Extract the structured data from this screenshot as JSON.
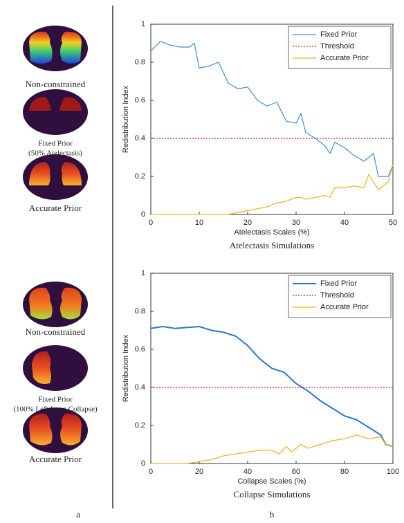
{
  "left_panel": {
    "captions": [
      "Non-constrained",
      "Fixed Prior",
      "(50% Atelectasis)",
      "Accurate Prior",
      "Non-constrained",
      "Fixed Prior",
      "(100% Left Lung Collapse)",
      "Accurate Prior"
    ]
  },
  "panel_labels": [
    "a",
    "b"
  ],
  "chart_data": [
    {
      "type": "line",
      "caption": "Atelectasis Simulations",
      "x_label": "Atelectasis Scales (%)",
      "y_label": "Redistribution Index",
      "xlim": [
        0,
        50
      ],
      "xticks": [
        0,
        10,
        20,
        30,
        40,
        50
      ],
      "ylim": [
        0,
        1
      ],
      "yticks": [
        0,
        0.2,
        0.4,
        0.6,
        0.8,
        1
      ],
      "legend": "upper right",
      "series": [
        {
          "name": "Fixed Prior",
          "color": "#3a8fd8",
          "dash": "solid",
          "x": [
            0,
            2,
            4,
            6,
            8,
            9,
            10,
            12,
            14,
            16,
            18,
            20,
            22,
            24,
            26,
            28,
            30,
            31,
            32,
            34,
            36,
            37,
            38,
            40,
            42,
            44,
            46,
            47,
            49,
            50
          ],
          "values": [
            0.86,
            0.91,
            0.89,
            0.88,
            0.88,
            0.9,
            0.77,
            0.78,
            0.8,
            0.69,
            0.66,
            0.67,
            0.6,
            0.57,
            0.59,
            0.49,
            0.48,
            0.53,
            0.43,
            0.4,
            0.36,
            0.32,
            0.38,
            0.35,
            0.31,
            0.28,
            0.32,
            0.2,
            0.2,
            0.26
          ]
        },
        {
          "name": "Threshold",
          "color": "#e02020",
          "dash": "dotted",
          "x": [
            0,
            50
          ],
          "values": [
            0.4,
            0.4
          ]
        },
        {
          "name": "Accurate Prior",
          "color": "#f0b020",
          "dash": "solid",
          "x": [
            0,
            2,
            4,
            6,
            8,
            9,
            10,
            12,
            14,
            16,
            18,
            20,
            22,
            24,
            26,
            28,
            30,
            31,
            32,
            34,
            36,
            37,
            38,
            40,
            42,
            44,
            45,
            47,
            49,
            50
          ],
          "values": [
            0,
            0,
            0,
            0,
            0,
            0,
            0,
            0,
            0,
            0,
            0.01,
            0.02,
            0.03,
            0.04,
            0.06,
            0.07,
            0.09,
            0.09,
            0.08,
            0.09,
            0.1,
            0.09,
            0.14,
            0.14,
            0.15,
            0.14,
            0.21,
            0.13,
            0.17,
            0.26
          ]
        }
      ]
    },
    {
      "type": "line",
      "caption": "Collapse Simulations",
      "x_label": "Collapse Scales (%)",
      "y_label": "Redistribution Index",
      "xlim": [
        0,
        100
      ],
      "xticks": [
        0,
        20,
        40,
        60,
        80,
        100
      ],
      "ylim": [
        0,
        1
      ],
      "yticks": [
        0,
        0.2,
        0.4,
        0.6,
        0.8,
        1
      ],
      "legend": "upper right",
      "series": [
        {
          "name": "Fixed Prior",
          "color": "#2a78c8",
          "dash": "solid",
          "linewidth": 2,
          "x": [
            0,
            5,
            10,
            20,
            25,
            30,
            35,
            40,
            45,
            50,
            55,
            60,
            65,
            70,
            75,
            80,
            85,
            90,
            95,
            97,
            100
          ],
          "values": [
            0.71,
            0.72,
            0.71,
            0.72,
            0.7,
            0.69,
            0.67,
            0.62,
            0.55,
            0.5,
            0.48,
            0.42,
            0.38,
            0.33,
            0.29,
            0.25,
            0.23,
            0.19,
            0.15,
            0.1,
            0.09
          ]
        },
        {
          "name": "Threshold",
          "color": "#e02020",
          "dash": "dotted",
          "x": [
            0,
            100
          ],
          "values": [
            0.4,
            0.4
          ]
        },
        {
          "name": "Accurate Prior",
          "color": "#f0b020",
          "dash": "solid",
          "x": [
            0,
            15,
            20,
            25,
            30,
            35,
            40,
            45,
            50,
            53,
            56,
            58,
            62,
            65,
            70,
            75,
            80,
            85,
            90,
            95,
            97,
            100
          ],
          "values": [
            0,
            0,
            0.01,
            0.02,
            0.04,
            0.05,
            0.06,
            0.07,
            0.07,
            0.05,
            0.09,
            0.06,
            0.1,
            0.08,
            0.1,
            0.12,
            0.13,
            0.15,
            0.13,
            0.14,
            0.1,
            0.09
          ]
        }
      ]
    }
  ]
}
